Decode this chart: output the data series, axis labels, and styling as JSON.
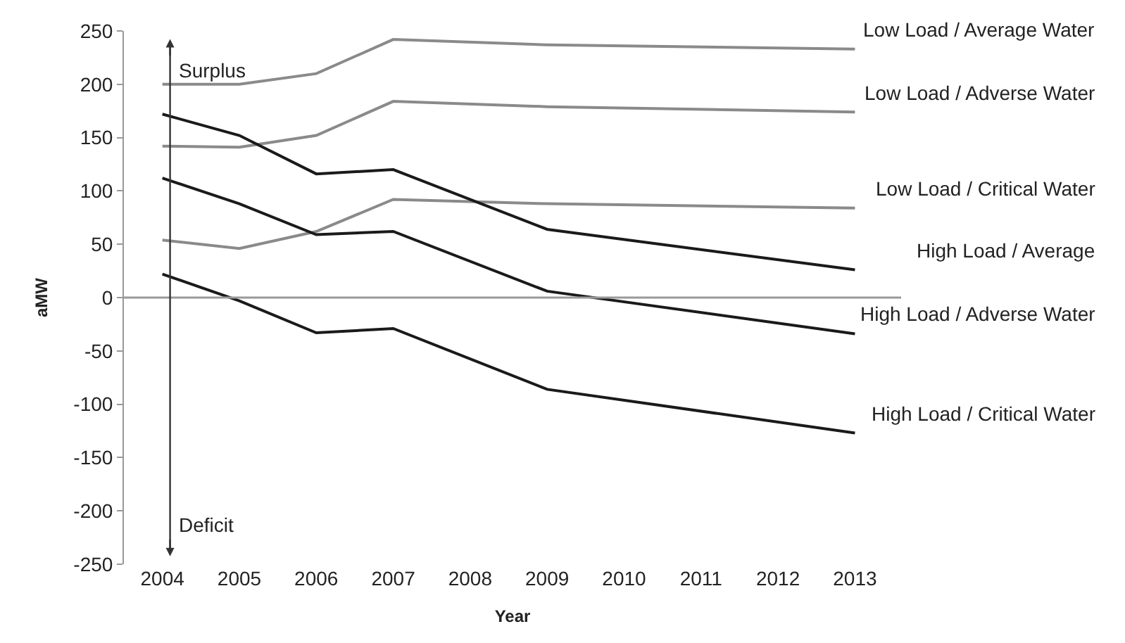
{
  "chart_data": {
    "type": "line",
    "xlabel": "Year",
    "ylabel": "aMW",
    "x": [
      2004,
      2005,
      2006,
      2007,
      2009,
      2013
    ],
    "series": [
      {
        "name": "Low Load / Average Water",
        "color": "#8a8a8a",
        "values": [
          200,
          200,
          210,
          242,
          237,
          233
        ]
      },
      {
        "name": "Low Load / Adverse Water",
        "color": "#8a8a8a",
        "values": [
          142,
          141,
          152,
          184,
          179,
          174
        ]
      },
      {
        "name": "Low Load / Critical Water",
        "color": "#8a8a8a",
        "values": [
          54,
          46,
          62,
          92,
          88,
          84
        ]
      },
      {
        "name": "High Load / Average",
        "color": "#1a1a1a",
        "values": [
          172,
          152,
          116,
          120,
          64,
          26
        ]
      },
      {
        "name": "High Load / Adverse Water",
        "color": "#1a1a1a",
        "values": [
          112,
          88,
          59,
          62,
          6,
          -34
        ]
      },
      {
        "name": "High Load / Critical Water",
        "color": "#1a1a1a",
        "values": [
          22,
          -3,
          -33,
          -29,
          -86,
          -127
        ]
      }
    ],
    "annotations": [
      "Surplus",
      "Deficit"
    ],
    "ref_lines": [
      {
        "axis": "y",
        "value": 0,
        "color": "#9a9a9a"
      },
      {
        "axis": "x",
        "value": 2004.1,
        "color": "#333333"
      }
    ],
    "xlim": [
      2003.5,
      2013.6
    ],
    "xticks": [
      2004,
      2005,
      2006,
      2007,
      2008,
      2009,
      2010,
      2011,
      2012,
      2013
    ],
    "ylim": [
      -250,
      250
    ],
    "yticks": [
      -250,
      -200,
      -150,
      -100,
      -50,
      0,
      50,
      100,
      150,
      200,
      250
    ],
    "legend": false,
    "marker": "none",
    "line_style": "solid"
  }
}
